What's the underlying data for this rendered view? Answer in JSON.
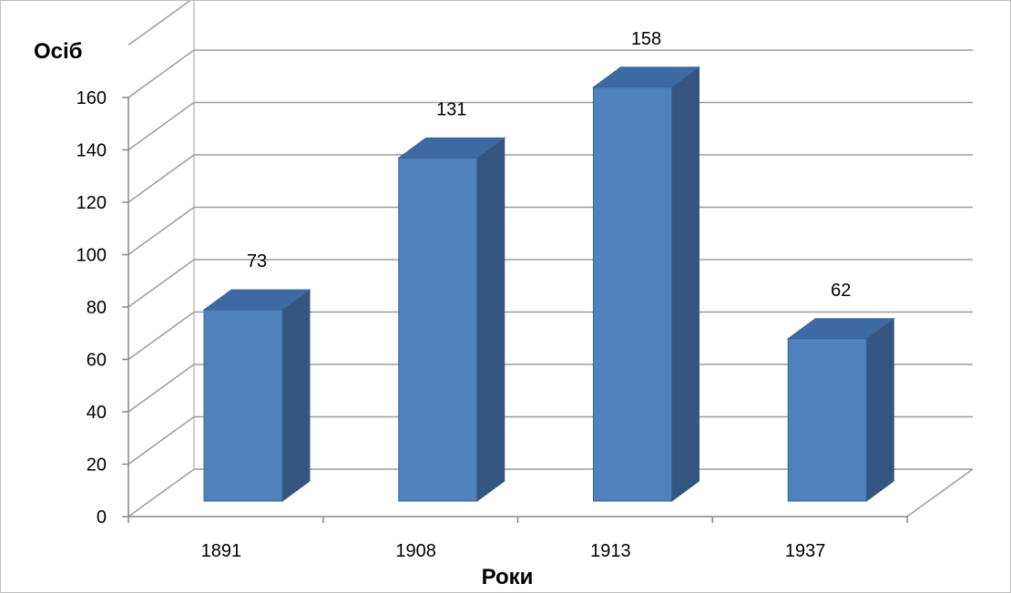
{
  "chart_data": {
    "type": "bar",
    "title": "",
    "xlabel": "Роки",
    "ylabel": "Осіб",
    "categories": [
      "1891",
      "1908",
      "1913",
      "1937"
    ],
    "values": [
      73,
      131,
      158,
      62
    ],
    "data_labels": [
      "73",
      "131",
      "158",
      "62"
    ],
    "yticks": [
      0,
      20,
      40,
      60,
      80,
      100,
      120,
      140,
      160
    ],
    "ylim": [
      0,
      180
    ],
    "grid": true,
    "legend": "none",
    "three_d": true,
    "colors": {
      "bar_front": "#4f81bd",
      "bar_side": "#34557f",
      "bar_top": "#3e6aa3",
      "bar_edge": "#3a6395",
      "gridline": "#9c9c9c",
      "axis": "#868686"
    }
  }
}
